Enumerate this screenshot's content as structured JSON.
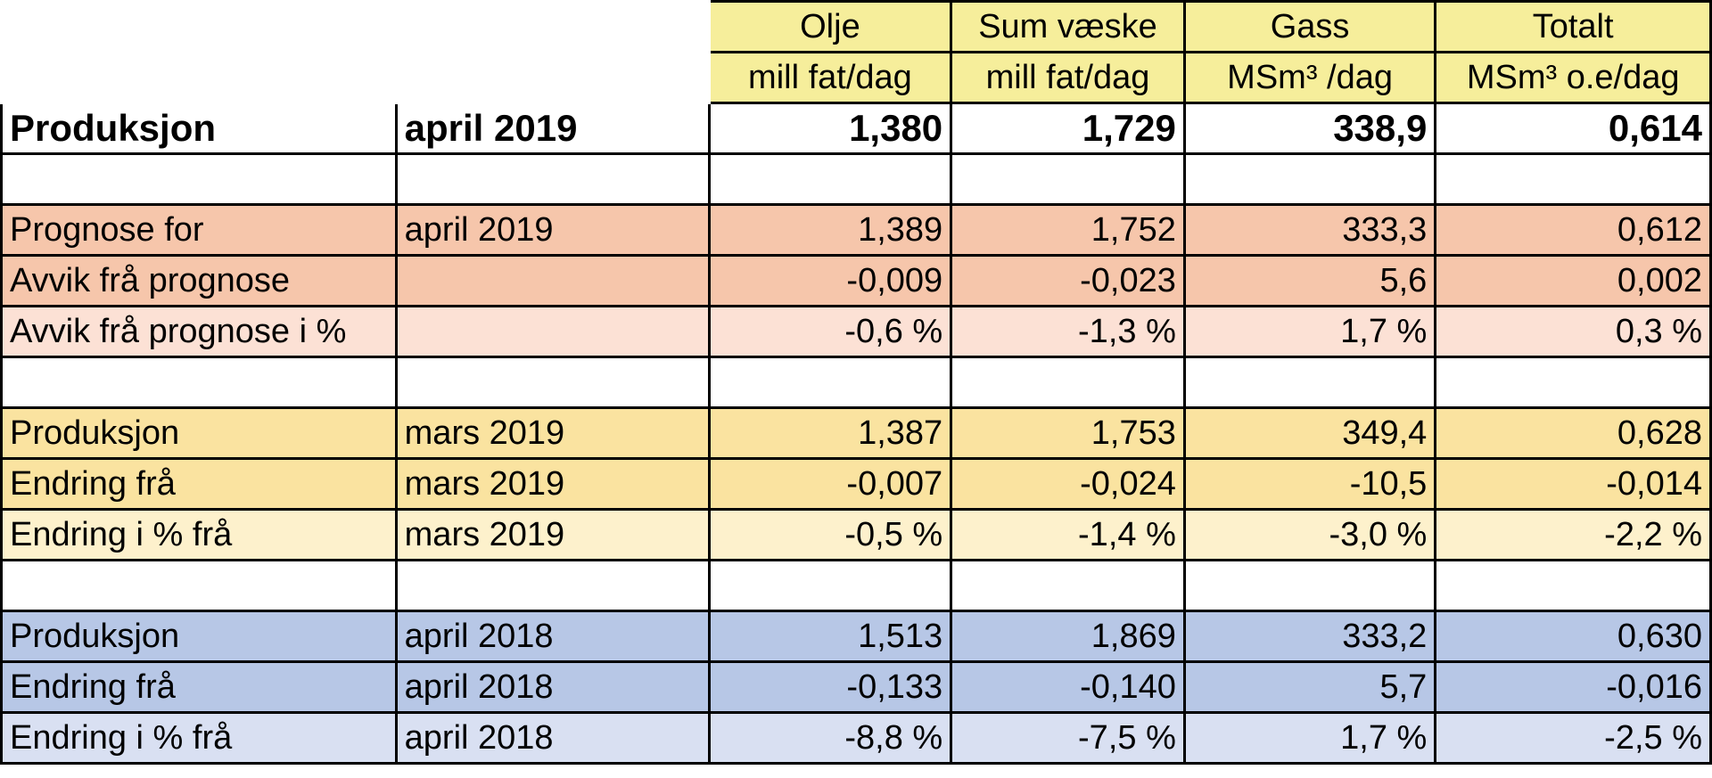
{
  "header": {
    "columns": [
      {
        "name": "Olje",
        "unit": "mill fat/dag"
      },
      {
        "name": "Sum væske",
        "unit": "mill fat/dag"
      },
      {
        "name": "Gass",
        "unit": "MSm³ /dag"
      },
      {
        "name": "Totalt",
        "unit": "MSm³ o.e/dag"
      }
    ]
  },
  "rows": [
    {
      "label": "Produksjon",
      "period": "april 2019",
      "values": [
        "1,380",
        "1,729",
        "338,9",
        "0,614"
      ]
    },
    {
      "label": "",
      "period": "",
      "values": [
        "",
        "",
        "",
        ""
      ]
    },
    {
      "label": "Prognose for",
      "period": "april 2019",
      "values": [
        "1,389",
        "1,752",
        "333,3",
        "0,612"
      ]
    },
    {
      "label": "Avvik frå prognose",
      "period": "",
      "values": [
        "-0,009",
        "-0,023",
        "5,6",
        "0,002"
      ]
    },
    {
      "label": "Avvik frå prognose i %",
      "period": "",
      "values": [
        "-0,6 %",
        "-1,3 %",
        "1,7 %",
        "0,3 %"
      ]
    },
    {
      "label": "",
      "period": "",
      "values": [
        "",
        "",
        "",
        ""
      ]
    },
    {
      "label": "Produksjon",
      "period": "mars 2019",
      "values": [
        "1,387",
        "1,753",
        "349,4",
        "0,628"
      ]
    },
    {
      "label": "Endring frå",
      "period": "mars 2019",
      "values": [
        "-0,007",
        "-0,024",
        "-10,5",
        "-0,014"
      ]
    },
    {
      "label": "Endring i % frå",
      "period": "mars 2019",
      "values": [
        "-0,5 %",
        "-1,4 %",
        "-3,0 %",
        "-2,2 %"
      ]
    },
    {
      "label": "",
      "period": "",
      "values": [
        "",
        "",
        "",
        ""
      ]
    },
    {
      "label": "Produksjon",
      "period": "april 2018",
      "values": [
        "1,513",
        "1,869",
        "333,2",
        "0,630"
      ]
    },
    {
      "label": "Endring frå",
      "period": "april 2018",
      "values": [
        "-0,133",
        "-0,140",
        "5,7",
        "-0,016"
      ]
    },
    {
      "label": "Endring i % frå",
      "period": "april 2018",
      "values": [
        "-8,8 %",
        "-7,5 %",
        "1,7 %",
        "-2,5 %"
      ]
    }
  ],
  "colors": {
    "header_fill": "#f6ee9b",
    "forecast_fill": "#f6c6ab",
    "forecast_pct_fill": "#fce1d5",
    "march_fill": "#fae3a0",
    "march_pct_fill": "#fdf1cc",
    "april2018_fill": "#b7c7e6",
    "april2018_pct_fill": "#d9e0f2"
  }
}
